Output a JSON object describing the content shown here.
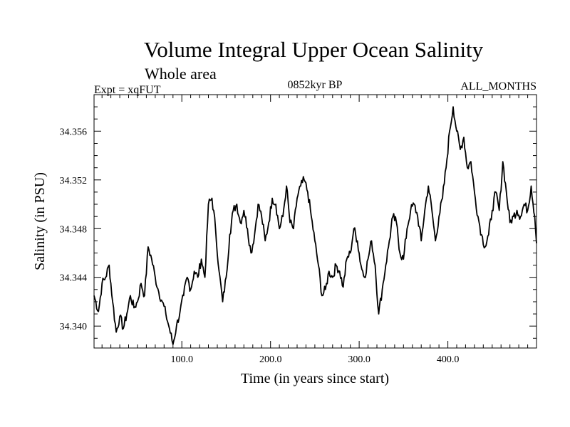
{
  "chart_data": {
    "type": "line",
    "title": "Volume Integral Upper Ocean Salinity",
    "subtitle": "Whole area",
    "experiment_label": "Expt = xqFUT",
    "period_label": "0852kyr BP",
    "months_label": "ALL_MONTHS",
    "xlabel": "Time (in years since start)",
    "ylabel": "Salinity (in PSU)",
    "xlim": [
      1,
      500
    ],
    "ylim": [
      34.3382,
      34.359
    ],
    "x_ticks": [
      100,
      200,
      300,
      400
    ],
    "x_tick_labels": [
      "100.0",
      "200.0",
      "300.0",
      "400.0"
    ],
    "y_ticks": [
      34.34,
      34.344,
      34.348,
      34.352,
      34.356
    ],
    "y_tick_labels": [
      "34.340",
      "34.344",
      "34.348",
      "34.352",
      "34.356"
    ],
    "grid": false,
    "series": [
      {
        "name": "Salinity",
        "x": [
          1,
          6,
          10,
          14,
          18,
          22,
          26,
          30,
          34,
          38,
          42,
          46,
          50,
          54,
          58,
          62,
          66,
          70,
          74,
          78,
          82,
          86,
          90,
          94,
          98,
          102,
          106,
          110,
          114,
          118,
          122,
          126,
          130,
          134,
          138,
          142,
          146,
          150,
          154,
          158,
          162,
          166,
          170,
          174,
          178,
          182,
          186,
          190,
          194,
          198,
          202,
          206,
          210,
          214,
          218,
          222,
          226,
          230,
          234,
          238,
          242,
          246,
          250,
          254,
          258,
          262,
          266,
          270,
          274,
          278,
          282,
          286,
          290,
          294,
          298,
          302,
          306,
          310,
          314,
          318,
          322,
          326,
          330,
          334,
          338,
          342,
          346,
          350,
          354,
          358,
          362,
          366,
          370,
          374,
          378,
          382,
          386,
          390,
          394,
          398,
          402,
          406,
          410,
          414,
          418,
          422,
          426,
          430,
          434,
          438,
          442,
          446,
          450,
          454,
          458,
          462,
          466,
          470,
          474,
          478,
          482,
          486,
          490,
          494,
          498,
          500
        ],
        "values": [
          34.3425,
          34.3412,
          34.3435,
          34.344,
          34.345,
          34.342,
          34.3395,
          34.3408,
          34.3398,
          34.341,
          34.3425,
          34.3415,
          34.342,
          34.3435,
          34.3425,
          34.3465,
          34.3455,
          34.344,
          34.3428,
          34.342,
          34.341,
          34.3398,
          34.3385,
          34.34,
          34.3412,
          34.3425,
          34.344,
          34.343,
          34.3445,
          34.344,
          34.3455,
          34.344,
          34.35,
          34.3505,
          34.348,
          34.3445,
          34.342,
          34.344,
          34.3475,
          34.3495,
          34.35,
          34.3485,
          34.3495,
          34.348,
          34.346,
          34.3475,
          34.35,
          34.349,
          34.347,
          34.3485,
          34.3505,
          34.35,
          34.348,
          34.349,
          34.3515,
          34.3485,
          34.348,
          34.3505,
          34.3515,
          34.352,
          34.351,
          34.349,
          34.347,
          34.345,
          34.3425,
          34.343,
          34.3445,
          34.344,
          34.345,
          34.3445,
          34.3432,
          34.3455,
          34.346,
          34.348,
          34.347,
          34.345,
          34.344,
          34.3455,
          34.347,
          34.345,
          34.341,
          34.343,
          34.345,
          34.347,
          34.349,
          34.3485,
          34.346,
          34.3455,
          34.348,
          34.3495,
          34.35,
          34.349,
          34.347,
          34.3495,
          34.3515,
          34.3495,
          34.347,
          34.349,
          34.3505,
          34.353,
          34.356,
          34.358,
          34.356,
          34.3545,
          34.3555,
          34.353,
          34.3535,
          34.351,
          34.349,
          34.3475,
          34.3465,
          34.3475,
          34.3495,
          34.351,
          34.3495,
          34.3535,
          34.351,
          34.3485,
          34.349,
          34.3495,
          34.349,
          34.35,
          34.3495,
          34.3515,
          34.349,
          34.3468
        ]
      }
    ]
  }
}
